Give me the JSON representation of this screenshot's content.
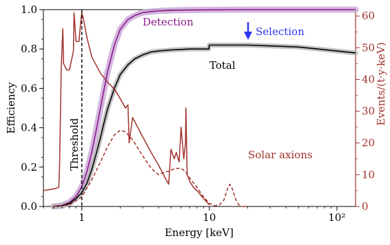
{
  "chart_data": {
    "type": "line",
    "xlabel": "Energy [keV]",
    "ylabel_left": "Efficiency",
    "ylabel_right": "Events/(t·y·keV)",
    "xscale": "log",
    "xlim": [
      0.5,
      140
    ],
    "ylim_left": [
      0.0,
      1.0
    ],
    "ylim_right": [
      0,
      62
    ],
    "x_ticks": [
      {
        "value": 1,
        "label": "1"
      },
      {
        "value": 10,
        "label": "10"
      },
      {
        "value": 100,
        "label": "10²"
      }
    ],
    "y_ticks_left": [
      "0.0",
      "0.2",
      "0.4",
      "0.6",
      "0.8",
      "1.0"
    ],
    "y_ticks_right": [
      "0",
      "10",
      "20",
      "30",
      "40",
      "50",
      "60"
    ],
    "colors": {
      "detection": "#8b1a8b",
      "detection_band": "#c9a6d6",
      "total": "#000000",
      "total_band": "#b3b3b3",
      "solar": "#a0302a",
      "selection_arrow": "#3333ee"
    },
    "annotations": {
      "detection": "Detection",
      "selection": "Selection",
      "total": "Total",
      "solar": "Solar axions",
      "threshold": "Threshold"
    },
    "threshold_x": 1.0,
    "series": [
      {
        "name": "Detection",
        "axis": "left",
        "x": [
          0.6,
          0.7,
          0.8,
          0.9,
          1.0,
          1.1,
          1.2,
          1.3,
          1.4,
          1.5,
          1.6,
          1.8,
          2.0,
          2.3,
          2.6,
          3.0,
          3.5,
          4.0,
          5.0,
          7.0,
          10.0,
          20.0,
          50.0,
          100.0,
          140.0
        ],
        "y": [
          0.0,
          0.005,
          0.02,
          0.05,
          0.1,
          0.18,
          0.28,
          0.39,
          0.5,
          0.6,
          0.69,
          0.82,
          0.9,
          0.95,
          0.97,
          0.985,
          0.99,
          0.993,
          0.996,
          0.998,
          0.999,
          1.0,
          1.0,
          1.0,
          1.0
        ]
      },
      {
        "name": "Total",
        "axis": "left",
        "x": [
          0.6,
          0.7,
          0.8,
          0.9,
          1.0,
          1.1,
          1.2,
          1.3,
          1.4,
          1.5,
          1.6,
          1.8,
          2.0,
          2.3,
          2.6,
          3.0,
          3.5,
          4.0,
          5.0,
          7.0,
          9.9,
          10.0,
          20.0,
          50.0,
          100.0,
          140.0
        ],
        "y": [
          0.0,
          0.004,
          0.015,
          0.04,
          0.07,
          0.12,
          0.19,
          0.27,
          0.35,
          0.43,
          0.5,
          0.6,
          0.67,
          0.72,
          0.75,
          0.77,
          0.785,
          0.79,
          0.795,
          0.8,
          0.8,
          0.82,
          0.82,
          0.81,
          0.79,
          0.78
        ]
      },
      {
        "name": "Solar axions",
        "axis": "right",
        "style": "solid",
        "x": [
          0.5,
          0.6,
          0.66,
          0.67,
          0.69,
          0.71,
          0.72,
          0.74,
          0.76,
          0.8,
          0.86,
          0.87,
          0.9,
          0.95,
          0.98,
          1.0,
          1.03,
          1.1,
          1.2,
          1.4,
          1.6,
          1.8,
          2.0,
          2.2,
          2.3,
          2.35,
          2.5,
          3.0,
          3.5,
          4.0,
          4.5,
          4.8,
          5.0,
          5.3,
          5.5,
          5.8,
          6.0,
          6.3,
          6.5,
          6.55,
          6.7,
          7.0,
          7.5,
          8.0,
          9.0,
          10.0
        ],
        "y": [
          5.0,
          5.5,
          6.0,
          13.0,
          44.0,
          56.0,
          45.0,
          44.0,
          43.0,
          43.0,
          49.0,
          61.0,
          52.0,
          52.0,
          58.0,
          61.0,
          59.0,
          53.0,
          47.0,
          42.0,
          39.0,
          37.0,
          34.0,
          31.0,
          32.0,
          20.0,
          28.0,
          22.0,
          17.0,
          13.0,
          9.0,
          7.0,
          18.0,
          15.0,
          17.0,
          14.0,
          25.0,
          15.0,
          20.0,
          31.0,
          10.0,
          8.0,
          6.0,
          5.0,
          2.5,
          0.5
        ]
      },
      {
        "name": "Solar axions (dashed)",
        "axis": "right",
        "style": "dashed",
        "x": [
          0.6,
          0.8,
          1.0,
          1.2,
          1.4,
          1.6,
          1.8,
          2.0,
          2.2,
          2.5,
          3.0,
          3.5,
          4.0,
          4.3,
          4.5,
          4.8,
          5.0,
          5.5,
          6.0,
          6.5,
          7.0,
          8.0,
          9.0,
          10.0,
          11.0,
          12.0,
          13.0,
          14.0,
          14.5,
          15.0,
          16.0,
          17.0,
          18.0,
          20.0
        ],
        "y": [
          0.0,
          0.5,
          3.0,
          8.5,
          14.0,
          19.0,
          22.5,
          24.0,
          23.5,
          21.0,
          16.0,
          12.0,
          10.0,
          10.5,
          11.0,
          11.0,
          11.5,
          12.0,
          12.0,
          11.0,
          9.0,
          6.0,
          3.0,
          1.0,
          0.2,
          0.5,
          2.0,
          6.0,
          7.0,
          6.0,
          2.5,
          0.5,
          0.0,
          0.0
        ]
      }
    ]
  }
}
